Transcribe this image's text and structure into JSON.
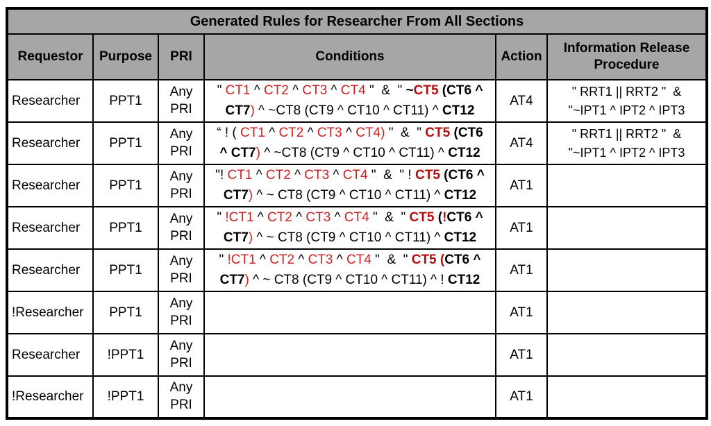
{
  "colors": {
    "header_bg": "#a6a6a6",
    "border": "#000000",
    "red_text": "#cd2121",
    "bold_red_text": "#b50d0d"
  },
  "title": "Generated Rules for Researcher From All Sections",
  "columns": {
    "requestor": "Requestor",
    "purpose": "Purpose",
    "pri": "PRI",
    "conditions": "Conditions",
    "action": "Action",
    "irp": "Information Release Procedure"
  },
  "rows": [
    {
      "requestor": "Researcher",
      "purpose": "PPT1",
      "pri": "Any\nPRI",
      "conditions": [
        {
          "t": "\" "
        },
        {
          "t": "CT1",
          "red": true
        },
        {
          "t": " ^ "
        },
        {
          "t": "CT2",
          "red": true
        },
        {
          "t": " ^ "
        },
        {
          "t": "CT3",
          "red": true
        },
        {
          "t": " ^ "
        },
        {
          "t": "CT4",
          "red": true
        },
        {
          "t": " \"  &  \" "
        },
        {
          "t": "~",
          "bold": true
        },
        {
          "t": "CT5",
          "red": true,
          "bold": true
        },
        {
          "t": " (",
          "bold": true
        },
        {
          "t": "CT6 ^\n",
          "bold": true
        },
        {
          "t": "CT7",
          "bold": true
        },
        {
          "t": ")",
          "red": true
        },
        {
          "t": " ^ ~CT8 (CT9 ^ CT10 ^ CT11) ^ "
        },
        {
          "t": "CT12",
          "bold": true
        }
      ],
      "action": "AT4",
      "irp": "\" RRT1 || RRT2 \"  &\n\"~IPT1 ^ IPT2 ^ IPT3"
    },
    {
      "requestor": "Researcher",
      "purpose": "PPT1",
      "pri": "Any\nPRI",
      "conditions": [
        {
          "t": "“ ! ( "
        },
        {
          "t": "CT1",
          "red": true
        },
        {
          "t": " ^ "
        },
        {
          "t": "CT2",
          "red": true
        },
        {
          "t": " ^ "
        },
        {
          "t": "CT3",
          "red": true
        },
        {
          "t": " ^ "
        },
        {
          "t": "CT4",
          "red": true
        },
        {
          "t": ")",
          "red": true
        },
        {
          "t": " \"  &  \" "
        },
        {
          "t": "CT5",
          "red": true,
          "bold": true
        },
        {
          "t": " (",
          "bold": true
        },
        {
          "t": "CT6\n",
          "bold": true
        },
        {
          "t": "^ CT7",
          "bold": true
        },
        {
          "t": ")",
          "red": true
        },
        {
          "t": " ^ ~CT8 (CT9 ^ CT10 ^ CT11) ^ "
        },
        {
          "t": "CT12",
          "bold": true
        }
      ],
      "action": "AT4",
      "irp": "\" RRT1 || RRT2 \"  &\n\"~IPT1 ^ IPT2 ^ IPT3"
    },
    {
      "requestor": "Researcher",
      "purpose": "PPT1",
      "pri": "Any\nPRI",
      "conditions": [
        {
          "t": "\"! "
        },
        {
          "t": "CT1",
          "red": true
        },
        {
          "t": " ^ "
        },
        {
          "t": "CT2",
          "red": true
        },
        {
          "t": " ^ "
        },
        {
          "t": "CT3",
          "red": true
        },
        {
          "t": " ^ "
        },
        {
          "t": "CT4",
          "red": true
        },
        {
          "t": " \"  &  \" ! "
        },
        {
          "t": "CT5",
          "red": true,
          "bold": true
        },
        {
          "t": " (",
          "bold": true
        },
        {
          "t": "CT6 ^\n",
          "bold": true
        },
        {
          "t": "CT7",
          "bold": true
        },
        {
          "t": ")",
          "red": true
        },
        {
          "t": " ^ ~ CT8 (CT9 ^ CT10 ^ CT11) ^ "
        },
        {
          "t": "CT12",
          "bold": true
        }
      ],
      "action": "AT1",
      "irp": ""
    },
    {
      "requestor": "Researcher",
      "purpose": "PPT1",
      "pri": "Any\nPRI",
      "conditions": [
        {
          "t": "\" "
        },
        {
          "t": "!CT1",
          "red": true
        },
        {
          "t": " ^ "
        },
        {
          "t": "CT2",
          "red": true
        },
        {
          "t": " ^ "
        },
        {
          "t": "CT3",
          "red": true
        },
        {
          "t": " ^ "
        },
        {
          "t": "CT4",
          "red": true
        },
        {
          "t": " \"  &  \" "
        },
        {
          "t": "CT5",
          "red": true,
          "bold": true
        },
        {
          "t": " (",
          "bold": true
        },
        {
          "t": "!",
          "red": true,
          "bold": true
        },
        {
          "t": "CT6 ^\n",
          "bold": true
        },
        {
          "t": "CT7",
          "bold": true
        },
        {
          "t": ")",
          "red": true
        },
        {
          "t": " ^ ~ CT8 (CT9 ^ CT10 ^ CT11) ^ "
        },
        {
          "t": "CT12",
          "bold": true
        }
      ],
      "action": "AT1",
      "irp": ""
    },
    {
      "requestor": "Researcher",
      "purpose": "PPT1",
      "pri": "Any\nPRI",
      "conditions": [
        {
          "t": "\" "
        },
        {
          "t": "!CT1",
          "red": true
        },
        {
          "t": " ^ "
        },
        {
          "t": "CT2",
          "red": true
        },
        {
          "t": " ^ "
        },
        {
          "t": "CT3",
          "red": true
        },
        {
          "t": " ^ "
        },
        {
          "t": "CT4",
          "red": true
        },
        {
          "t": " \"  &  \" "
        },
        {
          "t": "CT5",
          "red": true,
          "bold": true
        },
        {
          "t": " (",
          "red": true,
          "bold": true
        },
        {
          "t": "CT6 ^\n",
          "bold": true
        },
        {
          "t": "CT7",
          "bold": true
        },
        {
          "t": ")",
          "red": true
        },
        {
          "t": " ^ ~ CT8 (CT9 ^ CT10 ^ CT11) ^ ! "
        },
        {
          "t": "CT12",
          "bold": true
        }
      ],
      "action": "AT1",
      "irp": ""
    },
    {
      "requestor": "!Researcher",
      "purpose": "PPT1",
      "pri": "Any\nPRI",
      "conditions": [],
      "action": "AT1",
      "irp": ""
    },
    {
      "requestor": "Researcher",
      "purpose": "!PPT1",
      "pri": "Any\nPRI",
      "conditions": [],
      "action": "AT1",
      "irp": ""
    },
    {
      "requestor": "!Researcher",
      "purpose": "!PPT1",
      "pri": "Any\nPRI",
      "conditions": [],
      "action": "AT1",
      "irp": ""
    }
  ]
}
